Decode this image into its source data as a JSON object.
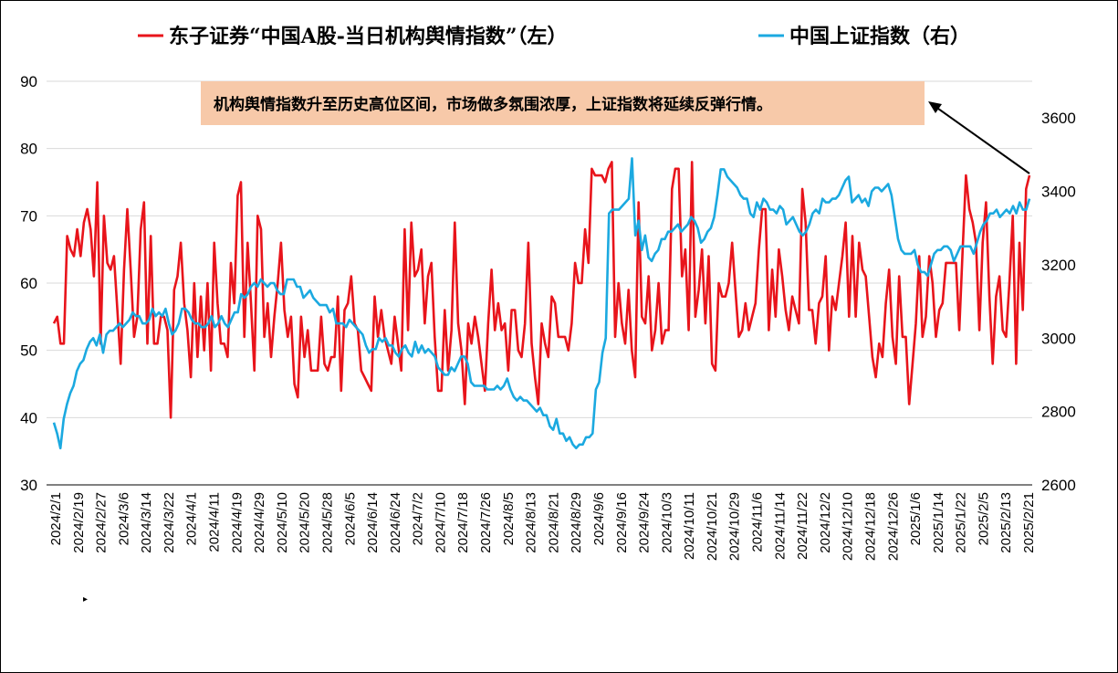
{
  "colors": {
    "left_series": "#e8141b",
    "right_series": "#1ba9e0",
    "annotation_bg": "#f7c9a9",
    "grid": "#d9d9d9"
  },
  "chart_data": {
    "type": "line",
    "legend_position": "top",
    "grid": true,
    "series": [
      {
        "name": "东子证券“中国A股-当日机构舆情指数”（左）",
        "axis": "left",
        "values": [
          54,
          55,
          51,
          51,
          67,
          65,
          64,
          68,
          64,
          69,
          71,
          68,
          61,
          75,
          51,
          70,
          63,
          62,
          64,
          56,
          48,
          62,
          71,
          62,
          52,
          55,
          68,
          72,
          51,
          67,
          51,
          51,
          55,
          55,
          53,
          40,
          59,
          61,
          66,
          57,
          53,
          46,
          60,
          49,
          58,
          50,
          60,
          47,
          66,
          57,
          51,
          51,
          49,
          63,
          57,
          73,
          75,
          52,
          66,
          57,
          47,
          70,
          68,
          52,
          57,
          49,
          55,
          60,
          66,
          56,
          52,
          55,
          45,
          43,
          55,
          49,
          53,
          47,
          47,
          47,
          55,
          48,
          47,
          49,
          49,
          58,
          44,
          56,
          57,
          61,
          54,
          53,
          47,
          46,
          45,
          44,
          58,
          52,
          56,
          52,
          50,
          48,
          55,
          51,
          47,
          68,
          53,
          69,
          61,
          62,
          65,
          54,
          61,
          63,
          52,
          44,
          44,
          56,
          47,
          53,
          69,
          54,
          50,
          42,
          54,
          51,
          55,
          52,
          48,
          44,
          54,
          62,
          53,
          57,
          53,
          54,
          47,
          56,
          56,
          50,
          49,
          54,
          66,
          51,
          46,
          42,
          54,
          51,
          49,
          58,
          57,
          52,
          52,
          52,
          50,
          54,
          63,
          60,
          60,
          68,
          63,
          77,
          76,
          76,
          76,
          75,
          77,
          78,
          52,
          60,
          54,
          51,
          59,
          50,
          46,
          72,
          55,
          54,
          61,
          50,
          53,
          60,
          51,
          53,
          53,
          74,
          77,
          77,
          61,
          65,
          53,
          78,
          55,
          59,
          65,
          54,
          64,
          48,
          47,
          60,
          58,
          58,
          60,
          66,
          59,
          52,
          53,
          57,
          53,
          55,
          57,
          65,
          71,
          71,
          53,
          62,
          55,
          65,
          61,
          56,
          53,
          58,
          56,
          54,
          74,
          69,
          56,
          56,
          51,
          57,
          58,
          64,
          50,
          58,
          56,
          60,
          64,
          69,
          55,
          67,
          55,
          66,
          62,
          61,
          55,
          49,
          46,
          51,
          49,
          57,
          62,
          52,
          48,
          61,
          52,
          52,
          42,
          48,
          54,
          64,
          52,
          55,
          64,
          60,
          52,
          56,
          57,
          63,
          63,
          63,
          63,
          53,
          65,
          76,
          71,
          69,
          66,
          53,
          66,
          72,
          58,
          48,
          58,
          61,
          53,
          52,
          60,
          70,
          48,
          66,
          56,
          74,
          76
        ]
      },
      {
        "name": "中国上证指数（右）",
        "axis": "right",
        "values": [
          2770,
          2740,
          2700,
          2780,
          2820,
          2850,
          2870,
          2910,
          2930,
          2940,
          2970,
          2990,
          3000,
          2980,
          3010,
          2960,
          3010,
          3020,
          3020,
          3030,
          3040,
          3030,
          3040,
          3050,
          3070,
          3060,
          3060,
          3040,
          3040,
          3050,
          3080,
          3060,
          3070,
          3060,
          3080,
          3040,
          3010,
          3020,
          3040,
          3080,
          3080,
          3070,
          3050,
          3040,
          3040,
          3030,
          3030,
          3040,
          3060,
          3030,
          3040,
          3060,
          3040,
          3030,
          3050,
          3070,
          3070,
          3120,
          3110,
          3120,
          3140,
          3150,
          3140,
          3160,
          3150,
          3140,
          3150,
          3150,
          3130,
          3120,
          3120,
          3160,
          3160,
          3160,
          3140,
          3140,
          3110,
          3120,
          3130,
          3110,
          3100,
          3090,
          3090,
          3090,
          3070,
          3080,
          3040,
          3040,
          3040,
          3030,
          3050,
          3040,
          3030,
          3020,
          3010,
          2980,
          2960,
          2970,
          2970,
          3000,
          2990,
          3000,
          2980,
          2980,
          2960,
          2950,
          2970,
          2980,
          2960,
          2950,
          2990,
          2960,
          2980,
          2960,
          2970,
          2960,
          2950,
          2920,
          2910,
          2900,
          2900,
          2920,
          2910,
          2930,
          2950,
          2950,
          2930,
          2880,
          2870,
          2870,
          2870,
          2870,
          2860,
          2860,
          2860,
          2870,
          2860,
          2870,
          2890,
          2860,
          2840,
          2830,
          2840,
          2830,
          2830,
          2820,
          2810,
          2800,
          2810,
          2790,
          2790,
          2760,
          2750,
          2780,
          2740,
          2740,
          2720,
          2730,
          2710,
          2700,
          2710,
          2710,
          2730,
          2730,
          2740,
          2860,
          2880,
          2960,
          3000,
          3340,
          3350,
          3350,
          3350,
          3360,
          3370,
          3380,
          3490,
          3280,
          3320,
          3240,
          3280,
          3220,
          3210,
          3230,
          3240,
          3270,
          3270,
          3290,
          3290,
          3300,
          3310,
          3290,
          3300,
          3310,
          3330,
          3320,
          3300,
          3260,
          3270,
          3290,
          3300,
          3330,
          3390,
          3460,
          3460,
          3440,
          3430,
          3420,
          3410,
          3390,
          3380,
          3380,
          3340,
          3330,
          3370,
          3350,
          3380,
          3370,
          3350,
          3350,
          3340,
          3360,
          3350,
          3310,
          3320,
          3330,
          3310,
          3290,
          3280,
          3290,
          3310,
          3340,
          3350,
          3340,
          3380,
          3370,
          3370,
          3380,
          3380,
          3390,
          3410,
          3430,
          3440,
          3370,
          3380,
          3390,
          3370,
          3380,
          3360,
          3400,
          3410,
          3410,
          3400,
          3410,
          3420,
          3390,
          3330,
          3270,
          3240,
          3230,
          3230,
          3230,
          3240,
          3200,
          3180,
          3180,
          3170,
          3200,
          3230,
          3240,
          3240,
          3250,
          3250,
          3240,
          3210,
          3230,
          3250,
          3250,
          3250,
          3250,
          3230,
          3260,
          3290,
          3310,
          3320,
          3340,
          3340,
          3350,
          3330,
          3340,
          3350,
          3340,
          3360,
          3340,
          3370,
          3350,
          3350,
          3380
        ]
      }
    ],
    "x_tick_labels": [
      "2024/2/1",
      "2024/2/19",
      "2024/2/27",
      "2024/3/6",
      "2024/3/14",
      "2024/3/22",
      "2024/4/1",
      "2024/4/11",
      "2024/4/19",
      "2024/4/29",
      "2024/5/10",
      "2024/5/20",
      "2024/5/28",
      "2024/6/5",
      "2024/6/14",
      "2024/6/24",
      "2024/7/2",
      "2024/7/10",
      "2024/7/18",
      "2024/7/26",
      "2024/8/5",
      "2024/8/13",
      "2024/8/21",
      "2024/8/29",
      "2024/9/6",
      "2024/9/16",
      "2024/9/24",
      "2024/10/3",
      "2024/10/11",
      "2024/10/21",
      "2024/10/29",
      "2024/11/6",
      "2024/11/14",
      "2024/11/22",
      "2024/12/2",
      "2024/12/10",
      "2024/12/18",
      "2024/12/26",
      "2025/1/6",
      "2025/1/14",
      "2025/1/22",
      "2025/2/5",
      "2025/2/13",
      "2025/2/21"
    ],
    "y_left": {
      "ticks": [
        30,
        40,
        50,
        60,
        70,
        80,
        90
      ],
      "range": [
        30,
        90
      ]
    },
    "y_right": {
      "ticks": [
        2600,
        2800,
        3000,
        3200,
        3400,
        3600
      ],
      "range": [
        2600,
        3700
      ]
    },
    "annotation": "机构舆情指数升至历史高位区间，市场做多氛围浓厚，上证指数将延续反弹行情。"
  }
}
